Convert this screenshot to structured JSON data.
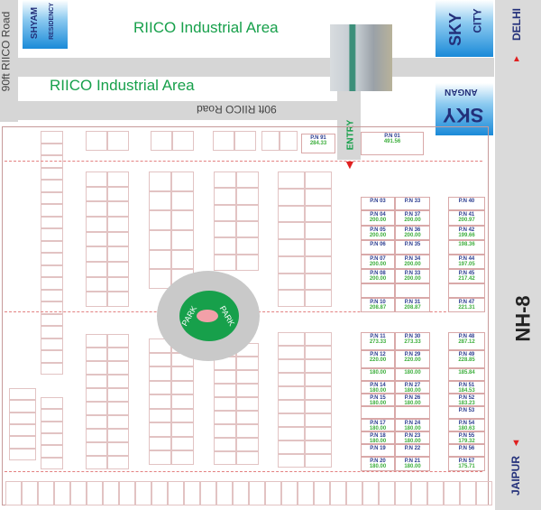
{
  "roads": {
    "left_road": "90ft RIICO Road",
    "inner_road": "90ft RIICO Road",
    "highway": "NH-8",
    "north_direction": "DELHI",
    "south_direction": "JAIPUR",
    "entry": "ENTRY"
  },
  "areas": {
    "top_area": "RIICO Industrial Area",
    "second_area": "RIICO Industrial Area",
    "park_left": "PARK",
    "park_right": "PARK"
  },
  "neighbours": {
    "shyam": {
      "line1": "SHYAM",
      "line2": "RESIDENCY"
    },
    "sky_city": {
      "line1": "SKY",
      "line2": "CITY"
    },
    "sky_angan": {
      "line1": "SKY",
      "line2": "ANGAN"
    }
  },
  "colors": {
    "road": "#d6d6d6",
    "area_text": "#17a04b",
    "plot_number": "#2a3b8f",
    "plot_area": "#3cae3c",
    "park": "#17a04b",
    "arrow": "#e02020"
  },
  "plots": {
    "top": [
      {
        "n": "P.N 91",
        "a": "284.33"
      },
      {
        "n": "P.N 01",
        "a": "491.56"
      }
    ],
    "left_pair": [
      {
        "n": "P.N 03",
        "a": ""
      },
      {
        "n": "P.N 04",
        "a": "200.00"
      },
      {
        "n": "P.N 05",
        "a": "200.00"
      },
      {
        "n": "P.N 06",
        "a": ""
      },
      {
        "n": "P.N 07",
        "a": "200.00"
      },
      {
        "n": "P.N 08",
        "a": "200.00"
      },
      {
        "n": "",
        "a": ""
      },
      {
        "n": "P.N 10",
        "a": "208.87"
      },
      {
        "n": "P.N 11",
        "a": "273.33"
      },
      {
        "n": "P.N 12",
        "a": "220.00"
      },
      {
        "n": "",
        "a": "180.00"
      },
      {
        "n": "P.N 14",
        "a": "180.00"
      },
      {
        "n": "P.N 15",
        "a": "180.00"
      },
      {
        "n": "",
        "a": ""
      },
      {
        "n": "P.N 17",
        "a": "180.00"
      },
      {
        "n": "P.N 18",
        "a": "180.00"
      },
      {
        "n": "P.N 19",
        "a": ""
      },
      {
        "n": "P.N 20",
        "a": "180.00"
      }
    ],
    "right_pair": [
      {
        "n": "P.N 33",
        "a": ""
      },
      {
        "n": "P.N 37",
        "a": "200.00"
      },
      {
        "n": "P.N 36",
        "a": "200.00"
      },
      {
        "n": "P.N 35",
        "a": ""
      },
      {
        "n": "P.N 34",
        "a": "200.00"
      },
      {
        "n": "P.N 33",
        "a": "200.00"
      },
      {
        "n": "",
        "a": ""
      },
      {
        "n": "P.N 31",
        "a": "208.87"
      },
      {
        "n": "P.N 30",
        "a": "273.33"
      },
      {
        "n": "P.N 29",
        "a": "220.00"
      },
      {
        "n": "",
        "a": "180.00"
      },
      {
        "n": "P.N 27",
        "a": "180.00"
      },
      {
        "n": "P.N 26",
        "a": "180.00"
      },
      {
        "n": "",
        "a": ""
      },
      {
        "n": "P.N 24",
        "a": "180.00"
      },
      {
        "n": "P.N 23",
        "a": "180.00"
      },
      {
        "n": "P.N 22",
        "a": ""
      },
      {
        "n": "P.N 21",
        "a": "180.00"
      }
    ],
    "highway_column": [
      {
        "n": "P.N 40",
        "a": ""
      },
      {
        "n": "P.N 41",
        "a": "200.97"
      },
      {
        "n": "P.N 42",
        "a": "199.66"
      },
      {
        "n": "",
        "a": "198.36"
      },
      {
        "n": "P.N 44",
        "a": "197.05"
      },
      {
        "n": "P.N 45",
        "a": "217.42"
      },
      {
        "n": "",
        "a": ""
      },
      {
        "n": "P.N 47",
        "a": "221.31"
      },
      {
        "n": "P.N 48",
        "a": "287.12"
      },
      {
        "n": "P.N 49",
        "a": "228.85"
      },
      {
        "n": "",
        "a": "185.84"
      },
      {
        "n": "P.N 51",
        "a": "184.53"
      },
      {
        "n": "P.N 52",
        "a": "183.23"
      },
      {
        "n": "P.N 53",
        "a": ""
      },
      {
        "n": "P.N 54",
        "a": "180.63"
      },
      {
        "n": "P.N 55",
        "a": "179.32"
      },
      {
        "n": "P.N 56",
        "a": ""
      },
      {
        "n": "P.N 57",
        "a": "175.71"
      }
    ]
  }
}
